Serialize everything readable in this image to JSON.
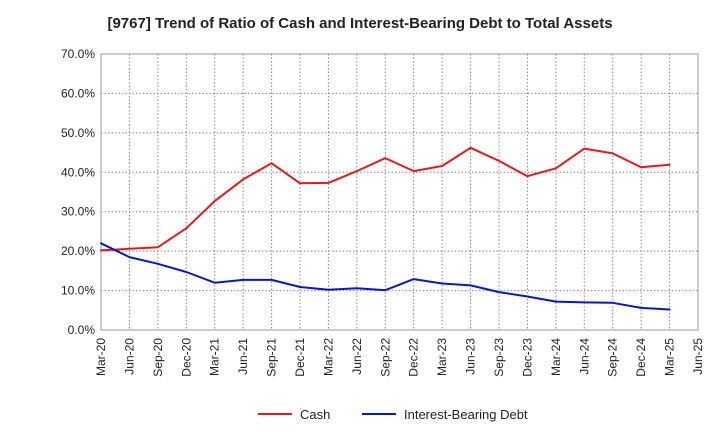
{
  "title": "[9767]  Trend of Ratio of Cash and Interest-Bearing Debt to Total Assets",
  "chart_data": {
    "type": "line",
    "title": "[9767]  Trend of Ratio of Cash and Interest-Bearing Debt to Total Assets",
    "xlabel": "",
    "ylabel": "",
    "x_ticks": [
      "Mar-20",
      "Jun-20",
      "Sep-20",
      "Dec-20",
      "Mar-21",
      "Jun-21",
      "Sep-21",
      "Dec-21",
      "Mar-22",
      "Jun-22",
      "Sep-22",
      "Dec-22",
      "Mar-23",
      "Jun-23",
      "Sep-23",
      "Dec-23",
      "Mar-24",
      "Jun-24",
      "Sep-24",
      "Dec-24",
      "Mar-25",
      "Jun-25"
    ],
    "y_ticks": [
      "0.0%",
      "10.0%",
      "20.0%",
      "30.0%",
      "40.0%",
      "50.0%",
      "60.0%",
      "70.0%"
    ],
    "ylim": [
      0,
      70
    ],
    "grid": true,
    "legend_position": "bottom",
    "series": [
      {
        "name": "Cash",
        "color": "#e31a1c",
        "x": [
          "Mar-20",
          "Jun-20",
          "Sep-20",
          "Dec-20",
          "Mar-21",
          "Jun-21",
          "Sep-21",
          "Dec-21",
          "Mar-22",
          "Jun-22",
          "Sep-22",
          "Dec-22",
          "Mar-23",
          "Jun-23",
          "Sep-23",
          "Dec-23",
          "Mar-24",
          "Jun-24",
          "Sep-24",
          "Dec-24",
          "Mar-25"
        ],
        "values": [
          20.2,
          20.6,
          21.0,
          25.8,
          32.7,
          38.2,
          42.3,
          37.2,
          37.3,
          40.3,
          43.6,
          40.3,
          41.6,
          46.2,
          42.9,
          39.0,
          41.0,
          46.0,
          44.8,
          41.3,
          41.9
        ]
      },
      {
        "name": "Interest-Bearing Debt",
        "color": "#0a14d2",
        "x": [
          "Mar-20",
          "Jun-20",
          "Sep-20",
          "Dec-20",
          "Mar-21",
          "Jun-21",
          "Sep-21",
          "Dec-21",
          "Mar-22",
          "Jun-22",
          "Sep-22",
          "Dec-22",
          "Mar-23",
          "Jun-23",
          "Sep-23",
          "Dec-23",
          "Mar-24",
          "Jun-24",
          "Sep-24",
          "Dec-24",
          "Mar-25"
        ],
        "values": [
          22.0,
          18.5,
          16.8,
          14.7,
          12.0,
          12.7,
          12.7,
          10.9,
          10.2,
          10.6,
          10.1,
          12.9,
          11.8,
          11.3,
          9.6,
          8.5,
          7.2,
          7.0,
          6.9,
          5.6,
          5.2
        ]
      }
    ]
  }
}
